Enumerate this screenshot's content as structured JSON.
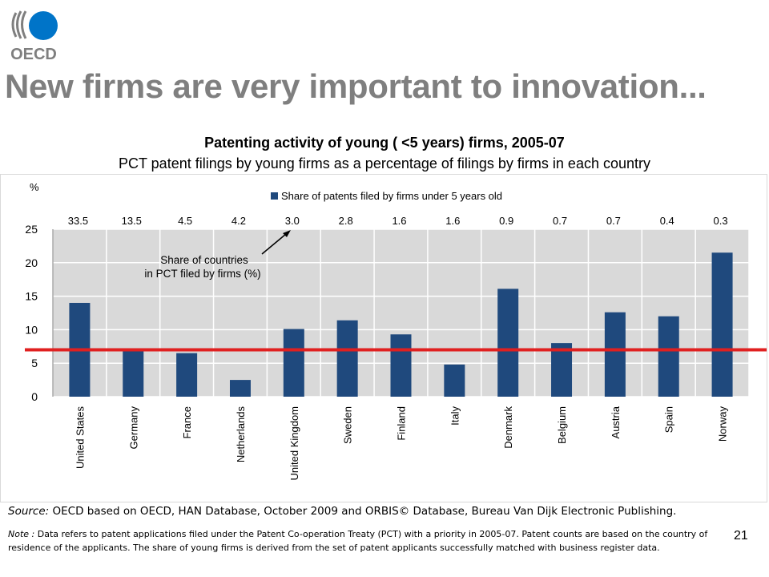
{
  "header": {
    "logo_text": "OECD",
    "title": "New firms are very important to innovation..."
  },
  "chart_data": {
    "type": "bar",
    "title": "Patenting activity of young ( <5 years) firms, 2005-07",
    "subtitle": "PCT patent filings by young firms as a percentage of filings by firms in each country",
    "ylabel": "%",
    "ylim": [
      0,
      25
    ],
    "yticks": [
      0,
      5,
      10,
      15,
      20,
      25
    ],
    "grid": true,
    "legend_position": "top-center",
    "categories": [
      "United States",
      "Germany",
      "France",
      "Netherlands",
      "United Kingdom",
      "Sweden",
      "Finland",
      "Italy",
      "Denmark",
      "Belgium",
      "Austria",
      "Spain",
      "Norway"
    ],
    "series": [
      {
        "name": "Share of patents filed by firms under 5 years old",
        "color": "#1f497d",
        "values": [
          14.0,
          7.0,
          6.5,
          2.5,
          10.1,
          11.4,
          9.3,
          4.8,
          16.1,
          8.0,
          12.6,
          12.0,
          21.5
        ]
      }
    ],
    "top_labels": [
      "33.5",
      "13.5",
      "4.5",
      "4.2",
      "3.0",
      "2.8",
      "1.6",
      "1.6",
      "0.9",
      "0.7",
      "0.7",
      "0.4",
      "0.3"
    ],
    "reference_line": {
      "value": 7.0,
      "color": "#e02020"
    },
    "annotation": {
      "line1": "Share of countries",
      "line2": "in PCT filed by firms (%)"
    }
  },
  "footer": {
    "source_label": "Source:",
    "source_text": " OECD based on OECD, HAN Database, October 2009 and ORBIS© Database, Bureau Van Dijk Electronic Publishing.",
    "note_label": "Note :",
    "note_text": " Data refers to patent applications filed under the Patent Co-operation Treaty (PCT) with a priority in 2005-07.  Patent counts are based on the country of residence of the applicants. The share of young firms is derived from the set of patent applicants successfully matched with business register data.",
    "page_number": "21"
  }
}
